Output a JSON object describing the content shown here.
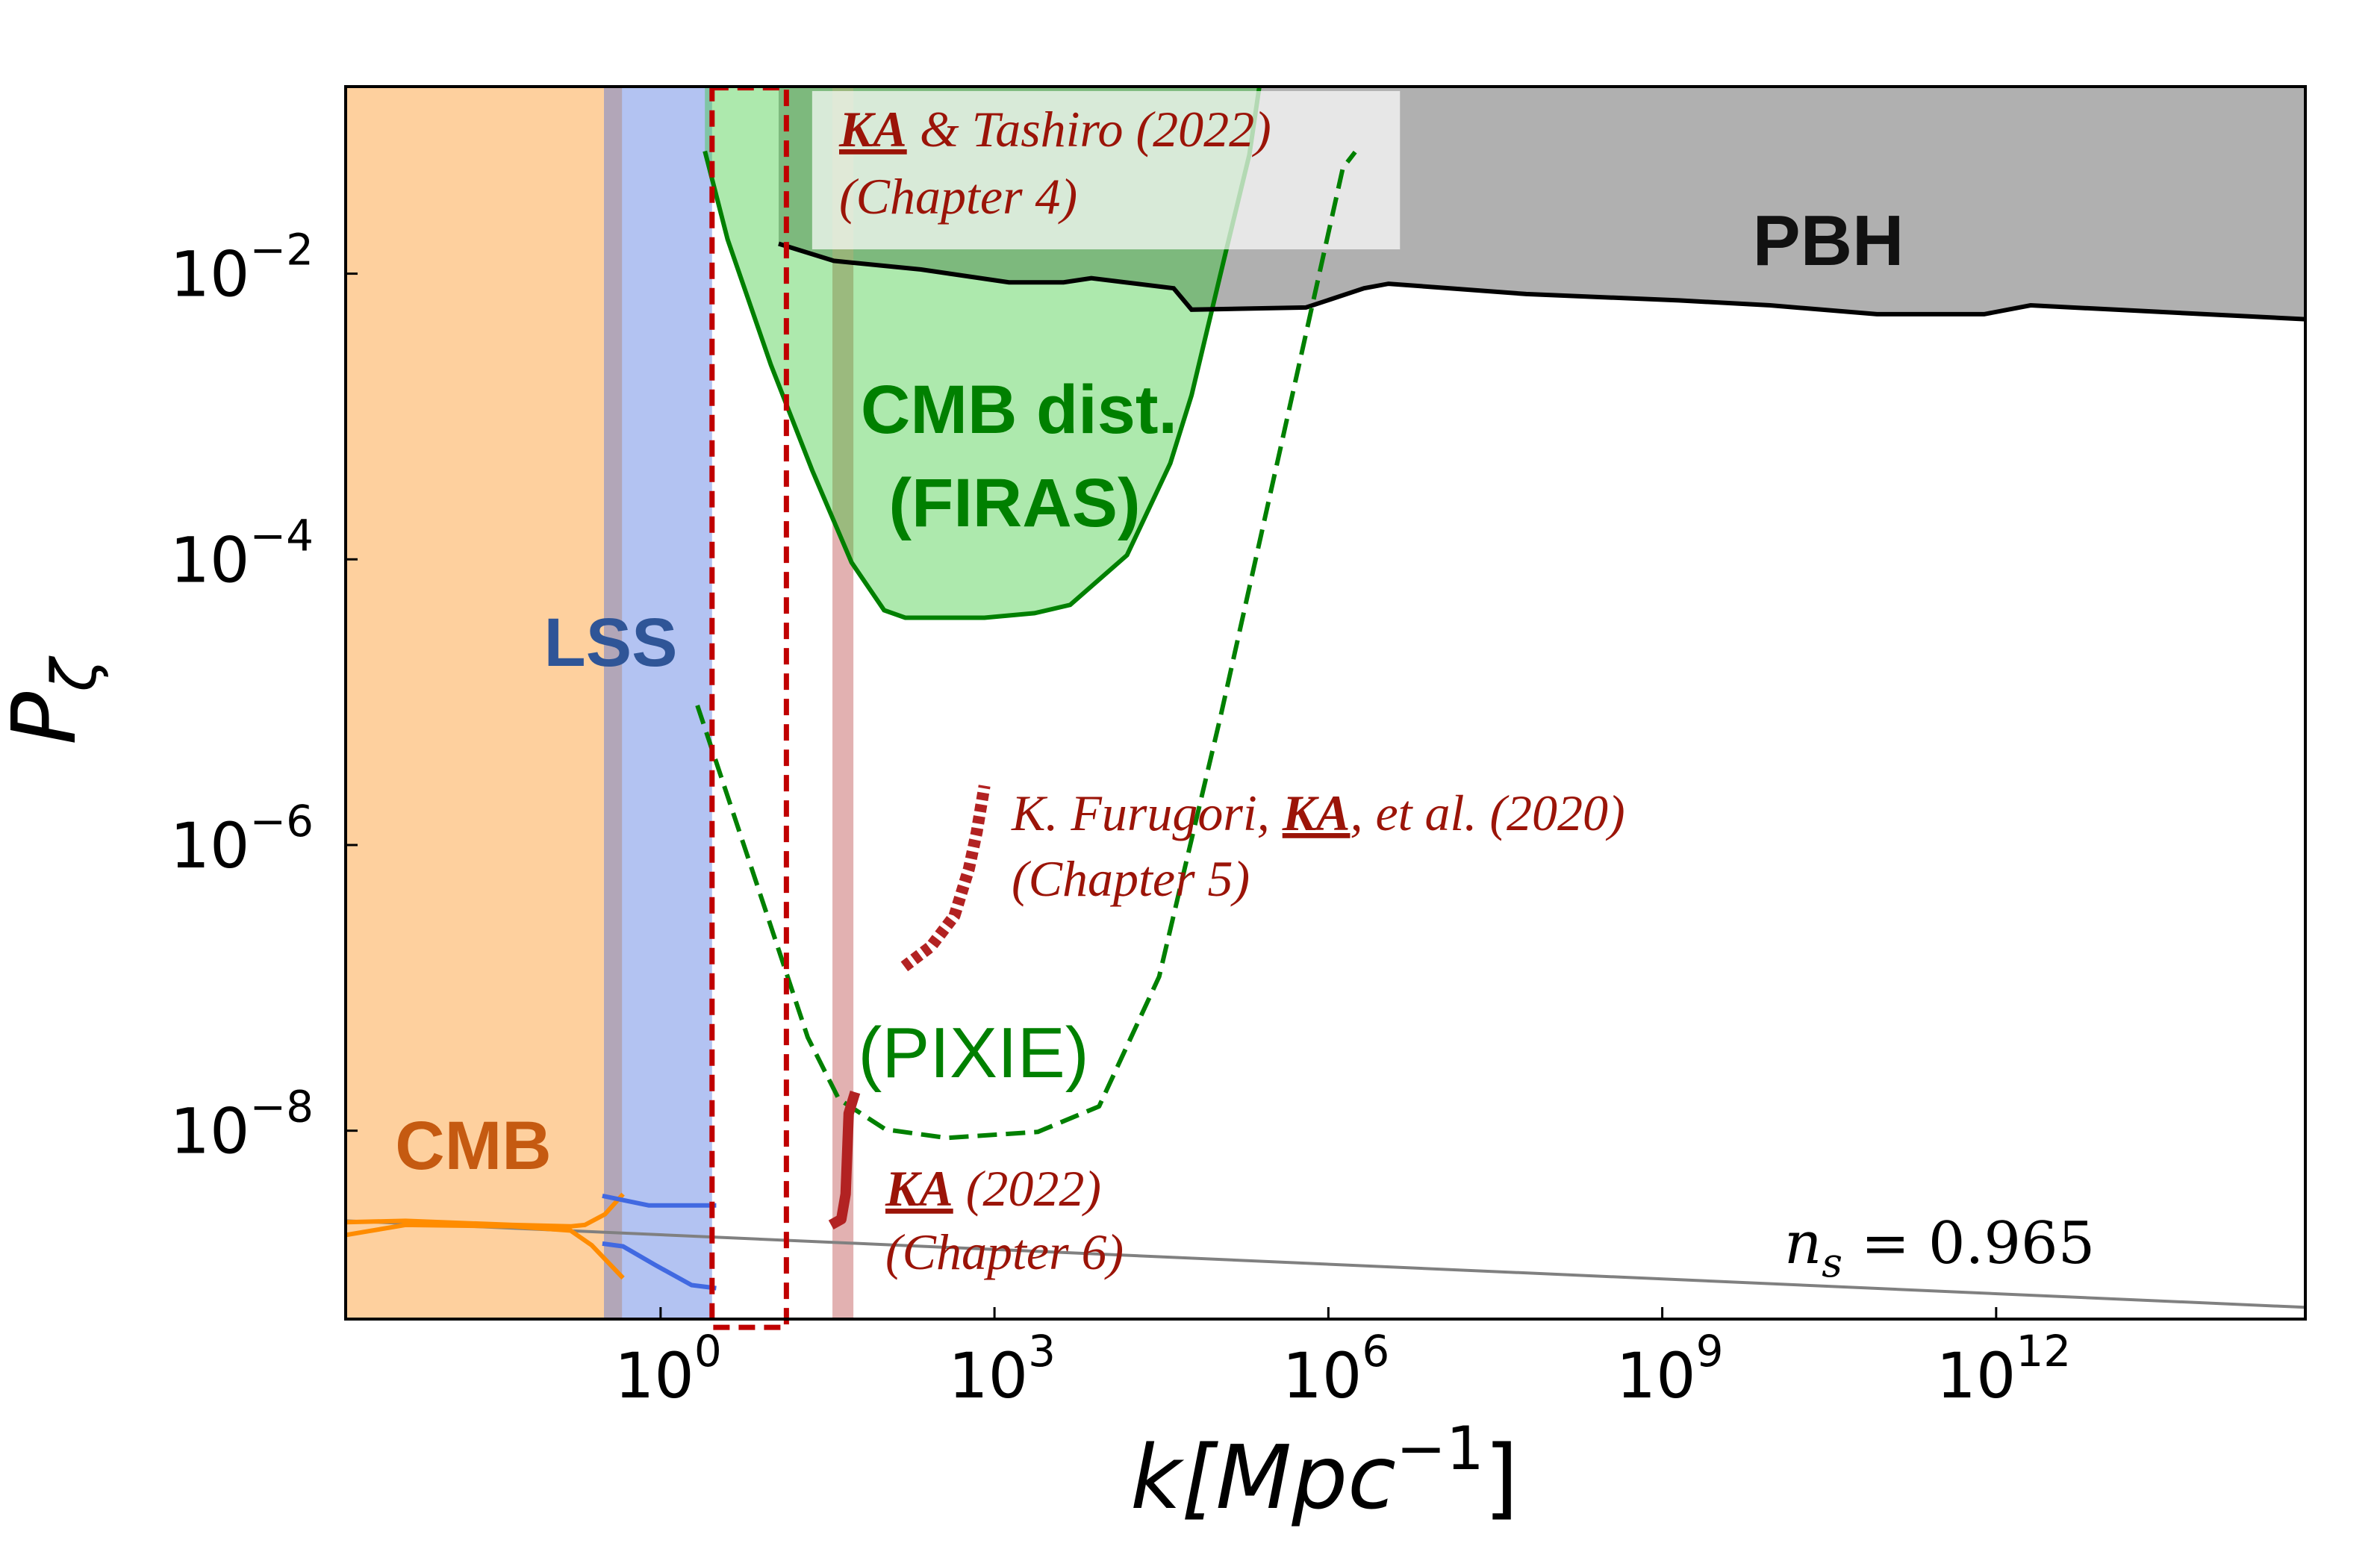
{
  "chart_data": {
    "type": "line",
    "xlabel": "k[Mpc",
    "xlabel_sup": "−1",
    "xlabel_close": "]",
    "ylabel": "P",
    "ylabel_sub": "ζ",
    "xscale": "log",
    "yscale": "log",
    "xlim": [
      0.00148,
      600000000000000.0
    ],
    "ylim": [
      4.8e-10,
      0.204
    ],
    "grid": false,
    "x_ticks": [
      {
        "value": 1,
        "base": "10",
        "exp": "0"
      },
      {
        "value": 1000.0,
        "base": "10",
        "exp": "3"
      },
      {
        "value": 1000000.0,
        "base": "10",
        "exp": "6"
      },
      {
        "value": 1000000000.0,
        "base": "10",
        "exp": "9"
      },
      {
        "value": 1000000000000.0,
        "base": "10",
        "exp": "12"
      }
    ],
    "y_ticks": [
      {
        "value": 0.01,
        "base": "10",
        "exp": "−2"
      },
      {
        "value": 0.0001,
        "base": "10",
        "exp": "−4"
      },
      {
        "value": 1e-06,
        "base": "10",
        "exp": "−6"
      },
      {
        "value": 1e-08,
        "base": "10",
        "exp": "−8"
      }
    ],
    "regions": {
      "cmb": {
        "label": "CMB",
        "k_range": [
          0.00148,
          0.45
        ],
        "color": "#fed09e",
        "label_color": "#c55a11"
      },
      "lss": {
        "label": "LSS",
        "k_range": [
          0.31,
          2.9
        ],
        "color": "#b3c3f2",
        "overlap_color": "#b2a6b8",
        "label_color": "#2f5597"
      },
      "pink_band": {
        "k_range": [
          35,
          54
        ],
        "color": "#dfa8a8"
      },
      "pbh": {
        "label": "PBH",
        "color": "#b0b0b0",
        "boundary": [
          [
            11.5,
            0.0162
          ],
          [
            36,
            0.0123
          ],
          [
            219,
            0.0107
          ],
          [
            1350,
            0.0087
          ],
          [
            4170,
            0.0087
          ],
          [
            7410,
            0.0093
          ],
          [
            40700.0,
            0.0079
          ],
          [
            59000.0,
            0.0056
          ],
          [
            630000.0,
            0.0058
          ],
          [
            2090000.0,
            0.0079
          ],
          [
            3470000.0,
            0.0085
          ],
          [
            60000000.0,
            0.0072
          ],
          [
            1410000000.0,
            0.0065
          ],
          [
            9300000000.0,
            0.006
          ],
          [
            85000000000.0,
            0.0052
          ],
          [
            780000000000.0,
            0.0052
          ],
          [
            2040000000000.0,
            0.006
          ],
          [
            18600000000000.0,
            0.0055
          ],
          [
            600000000000000.0,
            0.0048
          ]
        ]
      },
      "firas": {
        "label_1": "CMB dist.",
        "label_2": "(FIRAS)",
        "color": "#008000",
        "fill": "#aeeaa9",
        "boundary": [
          [
            2.5,
            0.072
          ],
          [
            4.0,
            0.0174
          ],
          [
            9.8,
            0.0023
          ],
          [
            23,
            0.00042
          ],
          [
            52,
            9.5e-05
          ],
          [
            102,
            4.4e-05
          ],
          [
            158,
            3.9e-05
          ],
          [
            813,
            3.9e-05
          ],
          [
            2290,
            4.2e-05
          ],
          [
            4790,
            4.8e-05
          ],
          [
            15500.0,
            0.000107
          ],
          [
            38000.0,
            0.00047
          ],
          [
            59000.0,
            0.00141
          ],
          [
            123000.0,
            0.0155
          ],
          [
            195000.0,
            0.068
          ],
          [
            240000.0,
            0.204
          ]
        ]
      }
    },
    "series": [
      {
        "name": "(PIXIE)",
        "style": "dashed",
        "color": "#008000",
        "points": [
          [
            2.14,
            9.5e-06
          ],
          [
            6.0,
            8.5e-07
          ],
          [
            21,
            4.5e-08
          ],
          [
            40,
            1.66e-08
          ],
          [
            105,
            1.02e-08
          ],
          [
            372,
            8.9e-09
          ],
          [
            2450,
            9.8e-09
          ],
          [
            8710,
            1.48e-08
          ],
          [
            30200.0,
            1.2e-07
          ],
          [
            107000.0,
            7.8e-06
          ],
          [
            380000.0,
            0.00065
          ],
          [
            1350000.0,
            0.055
          ],
          [
            1740000.0,
            0.071
          ]
        ]
      },
      {
        "name": "n_s = 0.965",
        "style": "solid",
        "color": "#808080",
        "points": [
          [
            0.00148,
            2.34e-09
          ],
          [
            600000000000000.0,
            5.8e-10
          ]
        ]
      },
      {
        "style": "solid",
        "color": "#ff8c00",
        "points": [
          [
            0.00148,
            2.29e-09
          ],
          [
            0.0051,
            2.34e-09
          ],
          [
            0.047,
            2.19e-09
          ],
          [
            0.155,
            2.14e-09
          ],
          [
            0.209,
            2.19e-09
          ],
          [
            0.316,
            2.6e-09
          ],
          [
            0.46,
            3.6e-09
          ]
        ]
      },
      {
        "style": "solid",
        "color": "#ff8c00",
        "points": [
          [
            0.00148,
            1.86e-09
          ],
          [
            0.0051,
            2.19e-09
          ],
          [
            0.047,
            2.14e-09
          ],
          [
            0.155,
            2e-09
          ],
          [
            0.24,
            1.58e-09
          ],
          [
            0.46,
            9.3e-10
          ]
        ]
      },
      {
        "style": "solid",
        "color": "#4169e1",
        "points": [
          [
            0.3,
            3.5e-09
          ],
          [
            0.78,
            3e-09
          ],
          [
            3.16,
            3e-09
          ]
        ]
      },
      {
        "style": "solid",
        "color": "#4169e1",
        "points": [
          [
            0.3,
            1.62e-09
          ],
          [
            0.46,
            1.55e-09
          ],
          [
            0.89,
            1.15e-09
          ],
          [
            1.9,
            8.3e-10
          ],
          [
            3.16,
            7.9e-10
          ]
        ]
      },
      {
        "style": "solid-thick",
        "color": "#b22222",
        "points": [
          [
            56,
            1.86e-08
          ],
          [
            49,
            1.32e-08
          ],
          [
            46,
            3.6e-09
          ],
          [
            42,
            2.4e-09
          ],
          [
            34,
            2.19e-09
          ]
        ]
      },
      {
        "style": "dotted",
        "color": "#b22222",
        "points": [
          [
            155,
            1.41e-07
          ],
          [
            269,
            1.95e-07
          ],
          [
            437,
            3.2e-07
          ],
          [
            589,
            6.8e-07
          ],
          [
            692,
            1.23e-06
          ],
          [
            813,
            2.6e-06
          ]
        ]
      }
    ],
    "highlight_box": {
      "k_range": [
        2.9,
        13.5
      ],
      "P_range": [
        4.2e-10,
        0.2
      ],
      "color": "#c00000"
    },
    "annotations": {
      "tashiro": {
        "hl": "KA",
        "rest": " & Tashiro (2022)",
        "line2": "(Chapter 4)"
      },
      "furugori": {
        "pre": "K. Furugori, ",
        "hl": "KA",
        "rest": ", et al. (2020)",
        "line2": "(Chapter 5)"
      },
      "ka2022": {
        "hl": "KA",
        "rest": " (2022)",
        "line2": "(Chapter 6)"
      },
      "ns": {
        "n": "n",
        "sub": "s",
        "rest": " = 0.965"
      },
      "pixie": "(PIXIE)"
    }
  }
}
